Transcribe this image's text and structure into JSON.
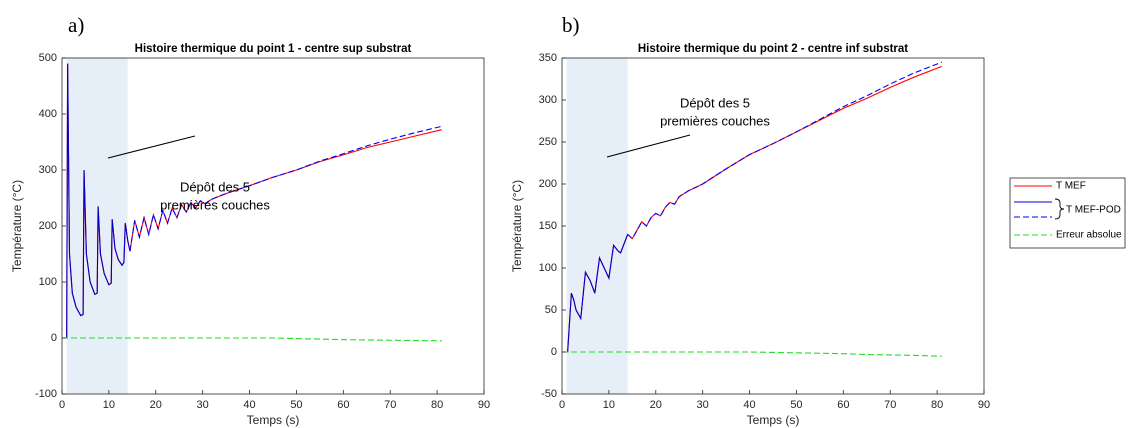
{
  "chart_data": [
    {
      "type": "line",
      "panel_label": "a)",
      "title": "Histoire thermique du point 1 - centre sup substrat",
      "xlabel": "Temps (s)",
      "ylabel": "Température (°C)",
      "annotation": [
        "Dépôt des 5",
        "premières couches"
      ],
      "shaded_xrange": [
        1,
        14
      ],
      "shade_color": "#e6eef7",
      "xlim": [
        0,
        90
      ],
      "xticks": [
        0,
        10,
        20,
        30,
        40,
        50,
        60,
        70,
        80,
        90
      ],
      "ylim": [
        -100,
        500
      ],
      "yticks": [
        -100,
        0,
        100,
        200,
        300,
        400,
        500
      ],
      "x": [
        0,
        1,
        1.2,
        1.6,
        2.2,
        3,
        4,
        4.5,
        4.7,
        5.2,
        6,
        7,
        7.5,
        7.7,
        8.2,
        9,
        10,
        10.5,
        10.7,
        11.3,
        12,
        12.8,
        13.2,
        13.5,
        14,
        14.5,
        15.5,
        16.5,
        17.5,
        18.5,
        19.5,
        20.5,
        21.5,
        22.5,
        23.5,
        24.5,
        25.5,
        26.5,
        27.5,
        28.5,
        29.5,
        30.5,
        32,
        35,
        40,
        45,
        50,
        55,
        60,
        65,
        70,
        75,
        81
      ],
      "series": [
        {
          "name": "T MEF",
          "color": "#ff0000",
          "dash": false,
          "values": [
            0,
            0,
            490,
            150,
            80,
            55,
            40,
            42,
            300,
            150,
            100,
            78,
            80,
            235,
            150,
            115,
            95,
            98,
            212,
            160,
            140,
            130,
            135,
            205,
            175,
            155,
            210,
            180,
            215,
            185,
            220,
            195,
            228,
            205,
            232,
            215,
            238,
            225,
            242,
            232,
            245,
            240,
            248,
            258,
            272,
            287,
            300,
            315,
            327,
            340,
            350,
            360,
            372
          ]
        },
        {
          "name": "T MEF-POD",
          "color": "#0000cc",
          "dash": false,
          "values": [
            0,
            0,
            490,
            150,
            80,
            55,
            40,
            42,
            300,
            150,
            100,
            78,
            80,
            235,
            150,
            115,
            95,
            98,
            212,
            160,
            140,
            130,
            135,
            205,
            175,
            155,
            null,
            null,
            null,
            null,
            null,
            null,
            null,
            null,
            null,
            null,
            null,
            null,
            null,
            null,
            null,
            null,
            null,
            null,
            null,
            null,
            null,
            null,
            null,
            null,
            null,
            null,
            null
          ]
        },
        {
          "name": null,
          "color": "#0000ff",
          "dash": true,
          "values": [
            null,
            null,
            null,
            null,
            null,
            null,
            null,
            null,
            null,
            null,
            null,
            null,
            null,
            null,
            null,
            null,
            null,
            null,
            null,
            null,
            null,
            null,
            null,
            null,
            null,
            155,
            210,
            180,
            215,
            185,
            220,
            195,
            228,
            205,
            232,
            215,
            238,
            225,
            242,
            232,
            245,
            240,
            248,
            258,
            272,
            287,
            300,
            316,
            329,
            343,
            355,
            366,
            378
          ]
        },
        {
          "name": "Erreur absolue",
          "color": "#22dd22",
          "dash": true,
          "values": [
            0,
            0,
            0,
            0,
            0,
            0,
            0,
            0,
            0,
            0,
            0,
            0,
            0,
            0,
            0,
            0,
            0,
            0,
            0,
            0,
            0,
            0,
            0,
            0,
            0,
            0,
            0,
            0,
            0,
            0,
            0,
            0,
            0,
            0,
            0,
            0,
            0,
            0,
            0,
            0,
            0,
            0,
            0,
            0,
            0,
            0,
            -1,
            -2,
            -3,
            -3.5,
            -4,
            -4.5,
            -5
          ]
        }
      ]
    },
    {
      "type": "line",
      "panel_label": "b)",
      "title": "Histoire thermique du point 2 - centre inf substrat",
      "xlabel": "Temps (s)",
      "ylabel": "Température (°C)",
      "annotation": [
        "Dépôt des 5",
        "premières couches"
      ],
      "shaded_xrange": [
        1,
        14
      ],
      "shade_color": "#e6eef7",
      "xlim": [
        0,
        90
      ],
      "xticks": [
        0,
        10,
        20,
        30,
        40,
        50,
        60,
        70,
        80,
        90
      ],
      "ylim": [
        -50,
        350
      ],
      "yticks": [
        -50,
        0,
        50,
        100,
        150,
        200,
        250,
        300,
        350
      ],
      "x": [
        0,
        1.2,
        2,
        2.5,
        3,
        4,
        5,
        6,
        7,
        8,
        9,
        10,
        11,
        12,
        12.5,
        14,
        15,
        16,
        17,
        18,
        19,
        20,
        21,
        22,
        23,
        24,
        25,
        27,
        30,
        35,
        40,
        45,
        50,
        55,
        60,
        65,
        70,
        75,
        81
      ],
      "series": [
        {
          "name": "T MEF",
          "color": "#ff0000",
          "dash": false,
          "values": [
            0,
            0,
            70,
            62,
            50,
            40,
            95,
            85,
            70,
            112,
            100,
            88,
            127,
            120,
            118,
            140,
            135,
            145,
            155,
            150,
            160,
            165,
            162,
            172,
            178,
            176,
            185,
            192,
            200,
            218,
            235,
            248,
            262,
            276,
            290,
            302,
            315,
            327,
            340
          ]
        },
        {
          "name": "T MEF-POD",
          "color": "#0000cc",
          "dash": false,
          "values": [
            0,
            0,
            70,
            62,
            50,
            40,
            95,
            85,
            70,
            112,
            100,
            88,
            127,
            120,
            118,
            140,
            null,
            null,
            null,
            null,
            null,
            null,
            null,
            null,
            null,
            null,
            null,
            null,
            null,
            null,
            null,
            null,
            null,
            null,
            null,
            null,
            null,
            null,
            null
          ]
        },
        {
          "name": null,
          "color": "#0000ff",
          "dash": true,
          "values": [
            null,
            null,
            null,
            null,
            null,
            null,
            null,
            null,
            null,
            null,
            null,
            null,
            null,
            null,
            null,
            140,
            135,
            145,
            155,
            150,
            160,
            165,
            162,
            172,
            178,
            176,
            185,
            192,
            200,
            218,
            235,
            248,
            262,
            277,
            292,
            305,
            319,
            332,
            345
          ]
        },
        {
          "name": "Erreur absolue",
          "color": "#22dd22",
          "dash": true,
          "values": [
            0,
            0,
            0,
            0,
            0,
            0,
            0,
            0,
            0,
            0,
            0,
            0,
            0,
            0,
            0,
            0,
            0,
            0,
            0,
            0,
            0,
            0,
            0,
            0,
            0,
            0,
            0,
            0,
            0,
            0,
            0,
            -0.5,
            -1,
            -1.5,
            -2,
            -3,
            -3.5,
            -4,
            -5
          ]
        }
      ]
    }
  ]
}
